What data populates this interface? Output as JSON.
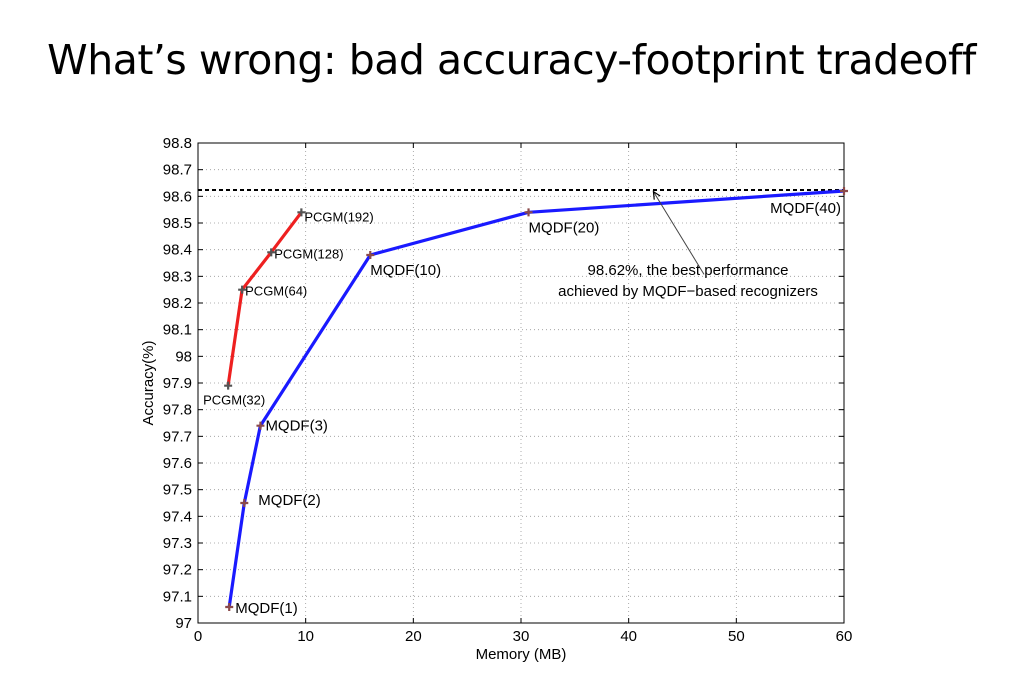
{
  "slide": {
    "title": "What’s wrong: bad accuracy-footprint tradeoff"
  },
  "chart_data": {
    "type": "line",
    "xlabel": "Memory (MB)",
    "ylabel": "Accuracy(%)",
    "xlim": [
      0,
      60
    ],
    "ylim": [
      97,
      98.8
    ],
    "x_ticks": [
      0,
      10,
      20,
      30,
      40,
      50,
      60
    ],
    "y_ticks": [
      97,
      97.1,
      97.2,
      97.3,
      97.4,
      97.5,
      97.6,
      97.7,
      97.8,
      97.9,
      98,
      98.1,
      98.2,
      98.3,
      98.4,
      98.5,
      98.6,
      98.7,
      98.8
    ],
    "grid": true,
    "series": [
      {
        "color": "#1a1aff",
        "marker_color": "#8b4a4a",
        "points": [
          {
            "x": 2.9,
            "y": 97.06,
            "label": "MQDF(1)"
          },
          {
            "x": 4.3,
            "y": 97.45,
            "label": "MQDF(2)"
          },
          {
            "x": 5.8,
            "y": 97.74,
            "label": "MQDF(3)"
          },
          {
            "x": 16.0,
            "y": 98.38,
            "label": "MQDF(10)"
          },
          {
            "x": 30.7,
            "y": 98.54,
            "label": "MQDF(20)"
          },
          {
            "x": 60.0,
            "y": 98.62,
            "label": "MQDF(40)"
          }
        ]
      },
      {
        "color": "#ee2020",
        "marker_color": "#555555",
        "points": [
          {
            "x": 2.8,
            "y": 97.89,
            "label": "PCGM(32)"
          },
          {
            "x": 4.1,
            "y": 98.25,
            "label": "PCGM(64)"
          },
          {
            "x": 6.8,
            "y": 98.39,
            "label": "PCGM(128)"
          },
          {
            "x": 9.6,
            "y": 98.54,
            "label": "PCGM(192)"
          }
        ]
      }
    ],
    "reference_line": {
      "y": 98.62,
      "style": "dashed",
      "color": "#000000"
    },
    "annotation": {
      "lines": [
        "98.62%, the best performance",
        "achieved by MQDF−based recognizers"
      ],
      "arrow_to": {
        "x": 42.3,
        "y": 98.625
      },
      "arrow_from": {
        "x": 47.0,
        "y": 98.3
      }
    }
  }
}
